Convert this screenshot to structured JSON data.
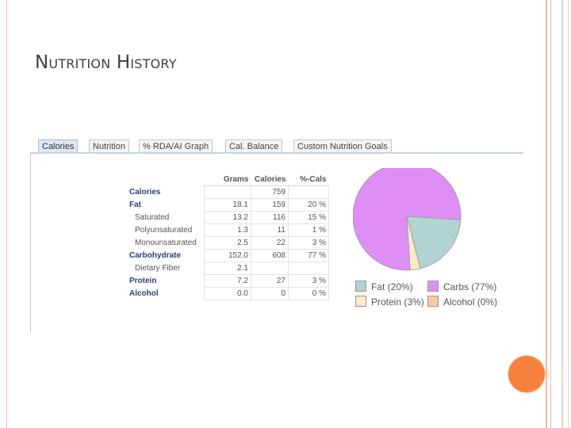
{
  "slide": {
    "title": "Nutrition History"
  },
  "tabs": [
    {
      "label": "Calories",
      "active": true
    },
    {
      "label": "Nutrition",
      "active": false
    },
    {
      "label": "% RDA/AI Graph",
      "active": false
    },
    {
      "label": "Cal. Balance",
      "active": false
    },
    {
      "label": "Custom Nutrition Goals",
      "active": false
    }
  ],
  "table": {
    "headers": [
      "Grams",
      "Calories",
      "%-Cals"
    ],
    "rows": [
      {
        "label": "Calories",
        "type": "main",
        "grams": "",
        "calories": "759",
        "pct": ""
      },
      {
        "label": "Fat",
        "type": "main",
        "grams": "18.1",
        "calories": "159",
        "pct": "20 %"
      },
      {
        "label": "Saturated",
        "type": "sub",
        "grams": "13.2",
        "calories": "116",
        "pct": "15 %"
      },
      {
        "label": "Polyunsaturated",
        "type": "sub",
        "grams": "1.3",
        "calories": "11",
        "pct": "1 %"
      },
      {
        "label": "Monounsaturated",
        "type": "sub",
        "grams": "2.5",
        "calories": "22",
        "pct": "3 %"
      },
      {
        "label": "Carbohydrate",
        "type": "main",
        "grams": "152.0",
        "calories": "608",
        "pct": "77 %"
      },
      {
        "label": "Dietary Fiber",
        "type": "sub",
        "grams": "2.1",
        "calories": "",
        "pct": ""
      },
      {
        "label": "Protein",
        "type": "main",
        "grams": "7.2",
        "calories": "27",
        "pct": "3 %"
      },
      {
        "label": "Alcohol",
        "type": "main",
        "grams": "0.0",
        "calories": "0",
        "pct": "0 %"
      }
    ]
  },
  "pie": {
    "slices": [
      {
        "name": "Carbs",
        "value": 77,
        "color": "#df8ef5"
      },
      {
        "name": "Fat",
        "value": 20,
        "color": "#b1d3d1"
      },
      {
        "name": "Protein",
        "value": 3,
        "color": "#f8ebc4"
      },
      {
        "name": "Alcohol",
        "value": 0,
        "color": "#f8c9a4"
      }
    ]
  },
  "legend": [
    {
      "text": "Fat  (20%)",
      "color": "#b1d3d1"
    },
    {
      "text": "Carbs  (77%)",
      "color": "#df8ef5"
    },
    {
      "text": "Protein  (3%)",
      "color": "#f8ebc4"
    },
    {
      "text": "Alcohol  (0%)",
      "color": "#f8c9a4"
    }
  ],
  "decor": {
    "accent": "#f7823d",
    "frame_color": "#f3b9a5"
  }
}
